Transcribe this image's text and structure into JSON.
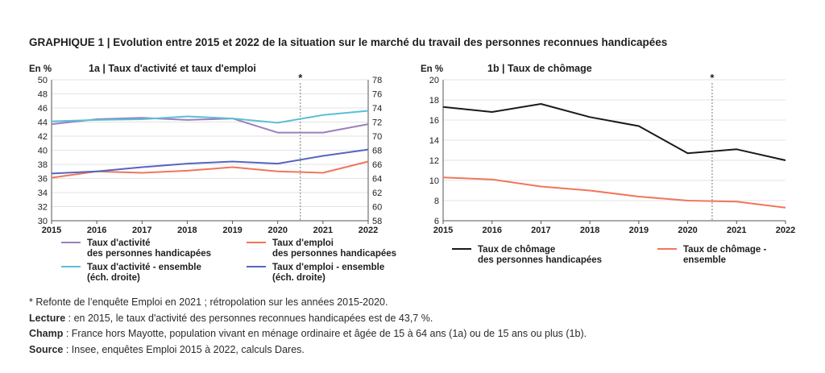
{
  "title": "GRAPHIQUE 1 | Evolution entre 2015 et 2022 de la situation sur le marché du travail des personnes reconnues handicapées",
  "chart_data": [
    {
      "type": "line",
      "title": "1a | Taux d'activité et taux d'emploi",
      "y_unit_label": "En %",
      "x": [
        "2015",
        "2016",
        "2017",
        "2018",
        "2019",
        "2020",
        "2021",
        "2022"
      ],
      "ylim_left": [
        30,
        50
      ],
      "yticks_left": [
        "30",
        "32",
        "34",
        "36",
        "38",
        "40",
        "42",
        "44",
        "46",
        "48",
        "50"
      ],
      "ylim_right": [
        58,
        78
      ],
      "yticks_right": [
        "58",
        "60",
        "62",
        "64",
        "66",
        "68",
        "70",
        "72",
        "74",
        "76",
        "78"
      ],
      "marker": {
        "label": "*",
        "between": [
          "2020",
          "2021"
        ]
      },
      "grid": "horizontal",
      "series": [
        {
          "name": "Taux d'activité des personnes handicapées",
          "legend_lines": [
            "Taux d'activité",
            "des personnes handicapées"
          ],
          "axis": "left",
          "color": "#9b7fbd",
          "values": [
            43.7,
            44.4,
            44.6,
            44.3,
            44.5,
            42.5,
            42.5,
            43.7
          ]
        },
        {
          "name": "Taux d'emploi des personnes handicapées",
          "legend_lines": [
            "Taux d'emploi",
            "des personnes handicapées"
          ],
          "axis": "left",
          "color": "#f0765a",
          "values": [
            36.1,
            37.0,
            36.8,
            37.1,
            37.6,
            37.0,
            36.8,
            38.4
          ]
        },
        {
          "name": "Taux d'activité - ensemble (éch. droite)",
          "legend_lines": [
            "Taux d'activité - ensemble",
            "(éch. droite)"
          ],
          "axis": "right",
          "color": "#5bbfd6",
          "values": [
            72.1,
            72.3,
            72.4,
            72.8,
            72.5,
            71.9,
            73.0,
            73.6
          ]
        },
        {
          "name": "Taux d'emploi - ensemble (éch. droite)",
          "legend_lines": [
            "Taux d'emploi - ensemble",
            "(éch. droite)"
          ],
          "axis": "right",
          "color": "#5566c0",
          "values": [
            64.7,
            65.0,
            65.6,
            66.1,
            66.4,
            66.1,
            67.2,
            68.1
          ]
        }
      ]
    },
    {
      "type": "line",
      "title": "1b | Taux de chômage",
      "y_unit_label": "En %",
      "x": [
        "2015",
        "2016",
        "2017",
        "2018",
        "2019",
        "2020",
        "2021",
        "2022"
      ],
      "ylim": [
        6,
        20
      ],
      "yticks": [
        "6",
        "8",
        "10",
        "12",
        "14",
        "16",
        "18",
        "20"
      ],
      "marker": {
        "label": "*",
        "between": [
          "2020",
          "2021"
        ]
      },
      "grid": "horizontal",
      "series": [
        {
          "name": "Taux de chômage des personnes handicapées",
          "legend_lines": [
            "Taux de chômage",
            "des personnes handicapées"
          ],
          "color": "#1a1a1a",
          "values": [
            17.3,
            16.8,
            17.6,
            16.3,
            15.4,
            12.7,
            13.1,
            12.0
          ]
        },
        {
          "name": "Taux de chômage - ensemble",
          "legend_lines": [
            "Taux de chômage -",
            "ensemble"
          ],
          "color": "#f0765a",
          "values": [
            10.3,
            10.1,
            9.4,
            9.0,
            8.4,
            8.0,
            7.9,
            7.3
          ]
        }
      ]
    }
  ],
  "notes": {
    "star_line": "* Refonte de l’enquête Emploi en 2021 ; rétropolation sur les années 2015-2020.",
    "lecture_label": "Lecture",
    "lecture_text": " : en 2015, le taux d'activité des personnes reconnues handicapées est de 43,7 %.",
    "champ_label": "Champ",
    "champ_text": " : France hors Mayotte, population vivant en ménage ordinaire et âgée de 15 à 64 ans (1a) ou de 15 ans ou plus (1b).",
    "source_label": "Source",
    "source_text": " : Insee, enquêtes Emploi 2015 à 2022, calculs Dares."
  }
}
